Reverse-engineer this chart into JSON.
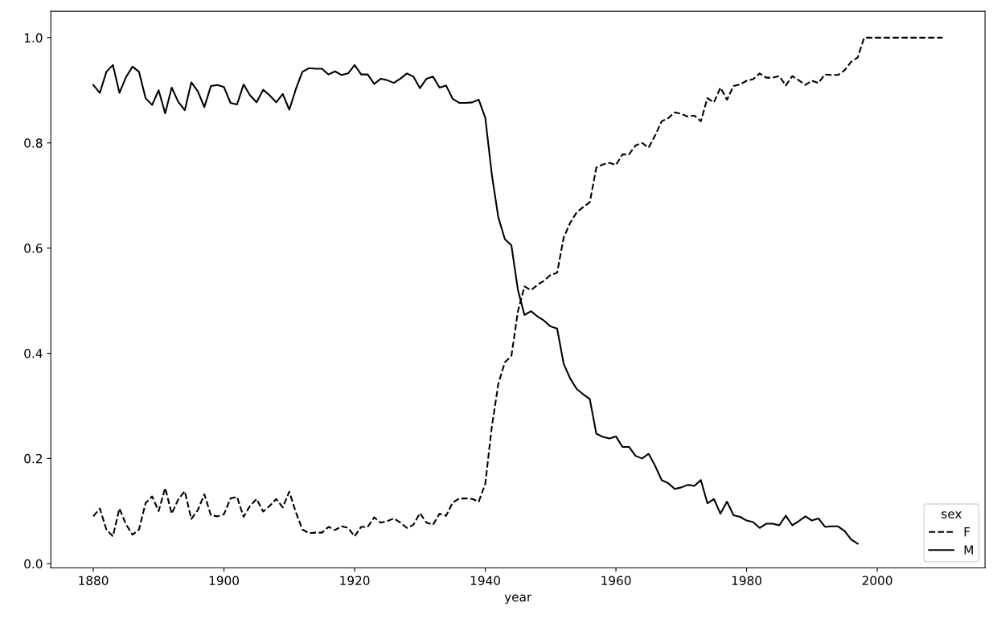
{
  "chart_data": {
    "type": "line",
    "xlabel": "year",
    "legend_title": "sex",
    "legend": "bottom right",
    "grid": false,
    "xlim": [
      1873.5,
      2016.5
    ],
    "xticks": [
      1880,
      1900,
      1920,
      1940,
      1960,
      1980,
      2000
    ],
    "ylim": [
      -0.008,
      1.05
    ],
    "yticks": [
      {
        "value": 0,
        "label": "0.0"
      },
      0.2,
      0.4,
      0.6,
      0.8,
      {
        "value": 1,
        "label": "1.0"
      }
    ],
    "series": [
      {
        "name": "F",
        "color": "#000000",
        "line_style": "dashed",
        "x": [
          1880,
          1881,
          1882,
          1883,
          1884,
          1885,
          1886,
          1887,
          1888,
          1889,
          1890,
          1891,
          1892,
          1893,
          1894,
          1895,
          1896,
          1897,
          1898,
          1899,
          1900,
          1901,
          1902,
          1903,
          1904,
          1905,
          1906,
          1907,
          1908,
          1909,
          1910,
          1911,
          1912,
          1913,
          1914,
          1915,
          1916,
          1917,
          1918,
          1919,
          1920,
          1921,
          1922,
          1923,
          1924,
          1925,
          1926,
          1927,
          1928,
          1929,
          1930,
          1931,
          1932,
          1933,
          1934,
          1935,
          1936,
          1937,
          1938,
          1939,
          1940,
          1941,
          1942,
          1943,
          1944,
          1945,
          1946,
          1947,
          1948,
          1949,
          1950,
          1951,
          1952,
          1953,
          1954,
          1955,
          1956,
          1957,
          1958,
          1959,
          1960,
          1961,
          1962,
          1963,
          1964,
          1965,
          1966,
          1967,
          1968,
          1969,
          1970,
          1971,
          1972,
          1973,
          1974,
          1975,
          1976,
          1977,
          1978,
          1979,
          1980,
          1981,
          1982,
          1983,
          1984,
          1985,
          1986,
          1987,
          1988,
          1989,
          1990,
          1991,
          1992,
          1993,
          1994,
          1995,
          1996,
          1997,
          1998,
          1999,
          2000,
          2001,
          2002,
          2003,
          2004,
          2005,
          2006,
          2007,
          2008,
          2009,
          2010
        ],
        "values": [
          0.09,
          0.105,
          0.065,
          0.052,
          0.105,
          0.075,
          0.055,
          0.065,
          0.115,
          0.128,
          0.1,
          0.144,
          0.095,
          0.122,
          0.138,
          0.085,
          0.102,
          0.132,
          0.092,
          0.09,
          0.094,
          0.124,
          0.127,
          0.089,
          0.11,
          0.123,
          0.099,
          0.11,
          0.123,
          0.107,
          0.137,
          0.098,
          0.065,
          0.058,
          0.059,
          0.059,
          0.07,
          0.064,
          0.071,
          0.068,
          0.052,
          0.07,
          0.07,
          0.088,
          0.078,
          0.081,
          0.086,
          0.078,
          0.068,
          0.074,
          0.096,
          0.078,
          0.074,
          0.095,
          0.091,
          0.116,
          0.124,
          0.124,
          0.123,
          0.118,
          0.152,
          0.26,
          0.342,
          0.383,
          0.395,
          0.48,
          0.527,
          0.52,
          0.53,
          0.538,
          0.549,
          0.553,
          0.62,
          0.648,
          0.668,
          0.678,
          0.687,
          0.753,
          0.759,
          0.762,
          0.758,
          0.778,
          0.778,
          0.795,
          0.8,
          0.791,
          0.814,
          0.841,
          0.847,
          0.858,
          0.855,
          0.85,
          0.852,
          0.841,
          0.885,
          0.877,
          0.905,
          0.882,
          0.908,
          0.911,
          0.918,
          0.921,
          0.932,
          0.924,
          0.924,
          0.927,
          0.909,
          0.927,
          0.919,
          0.91,
          0.918,
          0.914,
          0.93,
          0.929,
          0.929,
          0.938,
          0.954,
          0.962,
          1.0,
          1.0,
          1.0,
          1.0,
          1.0,
          1.0,
          1.0,
          1.0,
          1.0,
          1.0,
          1.0,
          1.0,
          1.0
        ]
      },
      {
        "name": "M",
        "color": "#000000",
        "line_style": "solid",
        "x": [
          1880,
          1881,
          1882,
          1883,
          1884,
          1885,
          1886,
          1887,
          1888,
          1889,
          1890,
          1891,
          1892,
          1893,
          1894,
          1895,
          1896,
          1897,
          1898,
          1899,
          1900,
          1901,
          1902,
          1903,
          1904,
          1905,
          1906,
          1907,
          1908,
          1909,
          1910,
          1911,
          1912,
          1913,
          1914,
          1915,
          1916,
          1917,
          1918,
          1919,
          1920,
          1921,
          1922,
          1923,
          1924,
          1925,
          1926,
          1927,
          1928,
          1929,
          1930,
          1931,
          1932,
          1933,
          1934,
          1935,
          1936,
          1937,
          1938,
          1939,
          1940,
          1941,
          1942,
          1943,
          1944,
          1945,
          1946,
          1947,
          1948,
          1949,
          1950,
          1951,
          1952,
          1953,
          1954,
          1955,
          1956,
          1957,
          1958,
          1959,
          1960,
          1961,
          1962,
          1963,
          1964,
          1965,
          1966,
          1967,
          1968,
          1969,
          1970,
          1971,
          1972,
          1973,
          1974,
          1975,
          1976,
          1977,
          1978,
          1979,
          1980,
          1981,
          1982,
          1983,
          1984,
          1985,
          1986,
          1987,
          1988,
          1989,
          1990,
          1991,
          1992,
          1993,
          1994,
          1995,
          1996,
          1997
        ],
        "values": [
          0.91,
          0.895,
          0.935,
          0.948,
          0.895,
          0.925,
          0.945,
          0.935,
          0.885,
          0.872,
          0.9,
          0.856,
          0.905,
          0.878,
          0.862,
          0.915,
          0.898,
          0.868,
          0.908,
          0.91,
          0.906,
          0.876,
          0.873,
          0.911,
          0.89,
          0.877,
          0.901,
          0.89,
          0.877,
          0.893,
          0.863,
          0.902,
          0.935,
          0.942,
          0.941,
          0.941,
          0.93,
          0.936,
          0.929,
          0.932,
          0.948,
          0.93,
          0.93,
          0.912,
          0.922,
          0.919,
          0.914,
          0.922,
          0.932,
          0.926,
          0.904,
          0.922,
          0.926,
          0.905,
          0.909,
          0.884,
          0.876,
          0.876,
          0.877,
          0.882,
          0.848,
          0.74,
          0.658,
          0.617,
          0.605,
          0.52,
          0.473,
          0.48,
          0.47,
          0.462,
          0.451,
          0.447,
          0.38,
          0.352,
          0.332,
          0.322,
          0.313,
          0.247,
          0.241,
          0.238,
          0.242,
          0.222,
          0.222,
          0.205,
          0.2,
          0.209,
          0.186,
          0.159,
          0.153,
          0.142,
          0.145,
          0.15,
          0.148,
          0.159,
          0.115,
          0.123,
          0.095,
          0.118,
          0.092,
          0.089,
          0.082,
          0.079,
          0.068,
          0.076,
          0.076,
          0.073,
          0.091,
          0.073,
          0.081,
          0.09,
          0.082,
          0.086,
          0.07,
          0.071,
          0.071,
          0.062,
          0.046,
          0.038
        ]
      }
    ]
  }
}
